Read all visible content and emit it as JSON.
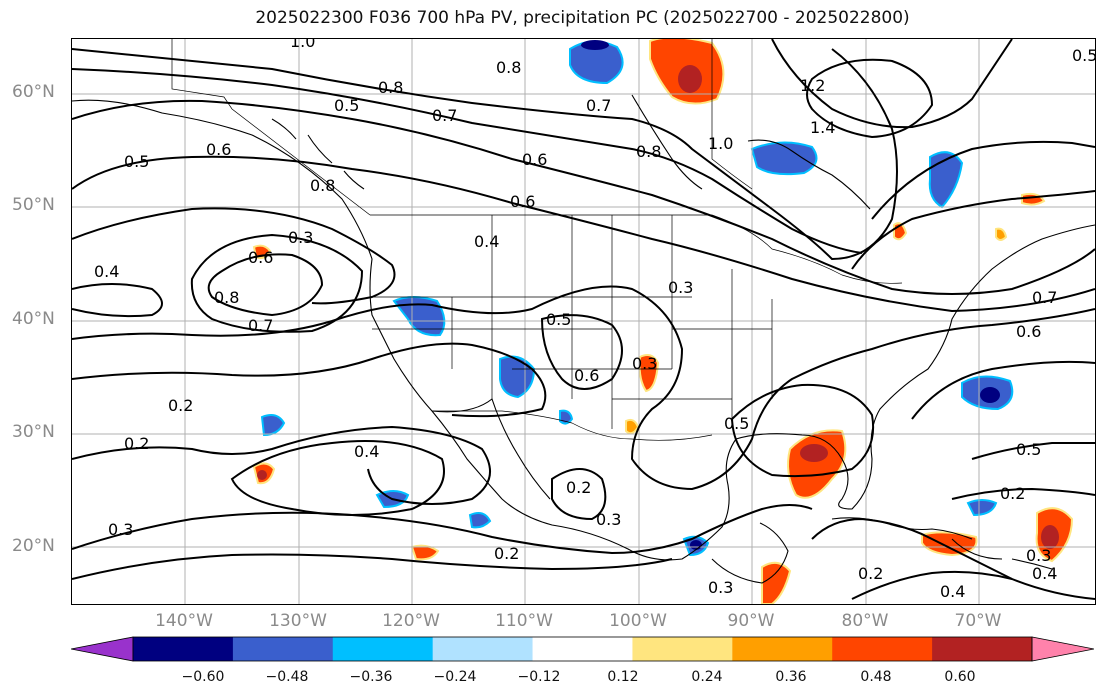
{
  "title": "2025022300 F036 700 hPa PV, precipitation PC (2025022700 - 2025022800)",
  "latitude_labels": [
    "60°N",
    "50°N",
    "40°N",
    "30°N",
    "20°N"
  ],
  "longitude_labels": [
    "140°W",
    "130°W",
    "120°W",
    "110°W",
    "100°W",
    "90°W",
    "80°W",
    "70°W"
  ],
  "colorbar": {
    "tick_labels": [
      "−0.60",
      "−0.48",
      "−0.36",
      "−0.24",
      "−0.12",
      "0.12",
      "0.24",
      "0.36",
      "0.48",
      "0.60"
    ],
    "colors": [
      "#9932cc",
      "#000080",
      "#3a5fcd",
      "#00bfff",
      "#b0e2ff",
      "#ffffff",
      "#ffe57f",
      "#ff9f00",
      "#ff4500",
      "#b22222",
      "#ff82ab"
    ]
  },
  "contour_labels": [
    "1.0",
    "0.8",
    "0.8",
    "0.5",
    "0.7",
    "0.7",
    "0.5",
    "0.6",
    "0.6",
    "0.6",
    "0.8",
    "1.2",
    "1.4",
    "1.0",
    "0.8",
    "0.3",
    "0.4",
    "0.6",
    "0.8",
    "0.7",
    "0.4",
    "0.5",
    "0.6",
    "0.3",
    "0.3",
    "0.7",
    "0.6",
    "0.2",
    "0.2",
    "0.4",
    "0.5",
    "0.2",
    "0.3",
    "0.2",
    "0.5",
    "0.2",
    "0.3",
    "0.3",
    "0.2",
    "0.4",
    "0.4",
    "0.3",
    "0.5"
  ]
}
